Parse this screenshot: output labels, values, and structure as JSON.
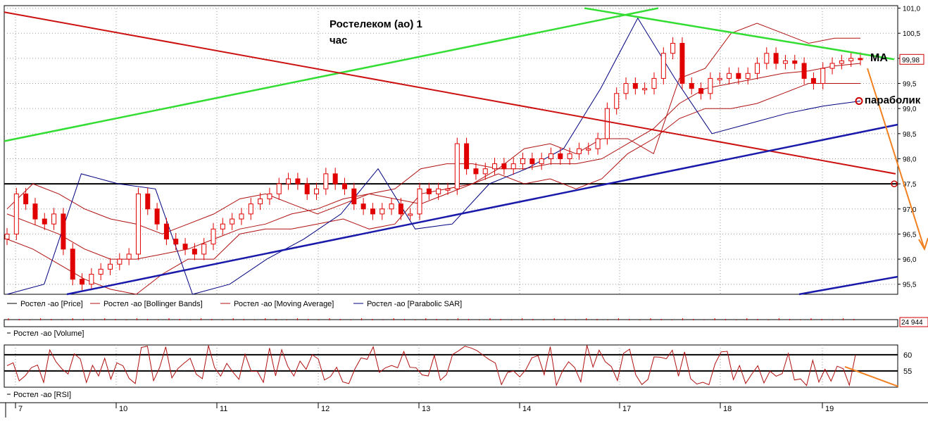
{
  "header": {
    "title": "Ростелеком (ао)   1",
    "title2": "час"
  },
  "annotations": {
    "ma": "MA",
    "parabolic": "параболик"
  },
  "price_panel": {
    "last_price": "99,98",
    "legend": [
      "Ростел -ао [Price]",
      "Ростел -ао [Bollinger Bands]",
      "Ростел -ао [Moving Average]",
      "Ростел -ао [Parabolic SAR]"
    ]
  },
  "volume_panel": {
    "last_volume": "24 944",
    "legend": "Ростел -ао [Volume]"
  },
  "rsi_panel": {
    "legend": "Ростел -ао [RSI]",
    "ticks": [
      "60",
      "55"
    ]
  },
  "colors": {
    "candle": "#e00000",
    "bands": "#b01010",
    "sar": "#000080",
    "green_line": "#33dd33",
    "red_line": "#cc1111",
    "blue_line": "#1a1aaa",
    "orange": "#f08020"
  },
  "chart_data": {
    "type": "candlestick",
    "y_ticks": [
      101.0,
      100.5,
      100.0,
      99.5,
      99.0,
      98.5,
      98.0,
      97.5,
      97.0,
      96.5,
      96.0,
      95.5
    ],
    "y_tick_labels": [
      "101,0",
      "100,5",
      "",
      "99,5",
      "99,0",
      "98,5",
      "98,0",
      "97,5",
      "97,0",
      "96,5",
      "96,0",
      "95,5"
    ],
    "ylim": [
      95.3,
      101.05
    ],
    "x_tick_labels": [
      "7",
      "10",
      "11",
      "12",
      "13",
      "14",
      "17",
      "18",
      "19"
    ],
    "horizontal_level": 97.5,
    "closes": [
      96.5,
      97.3,
      97.1,
      96.8,
      96.7,
      96.9,
      96.2,
      95.6,
      95.5,
      95.7,
      95.8,
      95.9,
      96.0,
      96.1,
      97.3,
      97.0,
      96.7,
      96.4,
      96.3,
      96.2,
      96.1,
      96.3,
      96.6,
      96.7,
      96.8,
      96.9,
      97.1,
      97.2,
      97.3,
      97.5,
      97.6,
      97.5,
      97.3,
      97.4,
      97.7,
      97.5,
      97.4,
      97.1,
      97.0,
      96.9,
      97.0,
      97.1,
      96.9,
      96.9,
      97.4,
      97.3,
      97.4,
      97.4,
      98.3,
      97.8,
      97.7,
      97.8,
      97.9,
      97.8,
      97.9,
      98.0,
      97.9,
      98.0,
      98.1,
      98.0,
      98.1,
      98.2,
      98.2,
      98.4,
      99.0,
      99.3,
      99.5,
      99.4,
      99.4,
      99.6,
      100.1,
      100.3,
      99.5,
      99.4,
      99.3,
      99.6,
      99.6,
      99.7,
      99.6,
      99.7,
      99.9,
      100.1,
      99.9,
      99.95,
      99.9,
      99.6,
      99.5,
      99.8,
      99.9,
      99.95,
      100.0,
      99.98
    ],
    "bollinger_upper": [
      97.0,
      97.5,
      97.3,
      97.0,
      96.8,
      96.7,
      96.5,
      96.7,
      96.9,
      97.2,
      97.3,
      97.1,
      96.9,
      97.1,
      97.3,
      97.4,
      97.8,
      97.9,
      97.9,
      97.8,
      98.2,
      98.3,
      98.1,
      98.4,
      98.4,
      98.1,
      99.6,
      99.8,
      100.5,
      100.7,
      100.5,
      100.3,
      100.4,
      100.4
    ],
    "bollinger_lower": [
      96.4,
      96.2,
      95.9,
      95.6,
      95.4,
      95.3,
      95.7,
      96.0,
      96.0,
      96.5,
      96.6,
      96.6,
      96.7,
      96.8,
      96.6,
      96.7,
      97.3,
      97.4,
      97.5,
      97.7,
      97.5,
      97.6,
      97.4,
      97.6,
      98.1,
      98.4,
      98.8,
      99.0,
      99.0,
      99.1,
      99.3,
      99.5,
      99.5,
      99.5
    ],
    "moving_average": [
      96.9,
      96.7,
      96.5,
      96.2,
      96.0,
      96.0,
      96.1,
      96.2,
      96.4,
      96.6,
      96.7,
      96.9,
      97.0,
      97.2,
      97.3,
      97.2,
      97.1,
      97.3,
      97.5,
      97.8,
      97.8,
      97.9,
      97.9,
      98.0,
      98.3,
      98.6,
      99.1,
      99.4,
      99.5,
      99.6,
      99.7,
      99.75,
      99.85,
      99.9
    ],
    "parabolic_sar": [
      95.3,
      95.5,
      97.7,
      97.5,
      97.4,
      95.3,
      95.5,
      96.0,
      96.4,
      96.9,
      97.8,
      96.6,
      96.7,
      97.5,
      97.8,
      98.2,
      99.4,
      100.8,
      99.6,
      98.5,
      98.7,
      98.9,
      99.05,
      99.15
    ],
    "rsi_levels": [
      60,
      55
    ],
    "rsi_ylim": [
      50,
      63
    ]
  }
}
